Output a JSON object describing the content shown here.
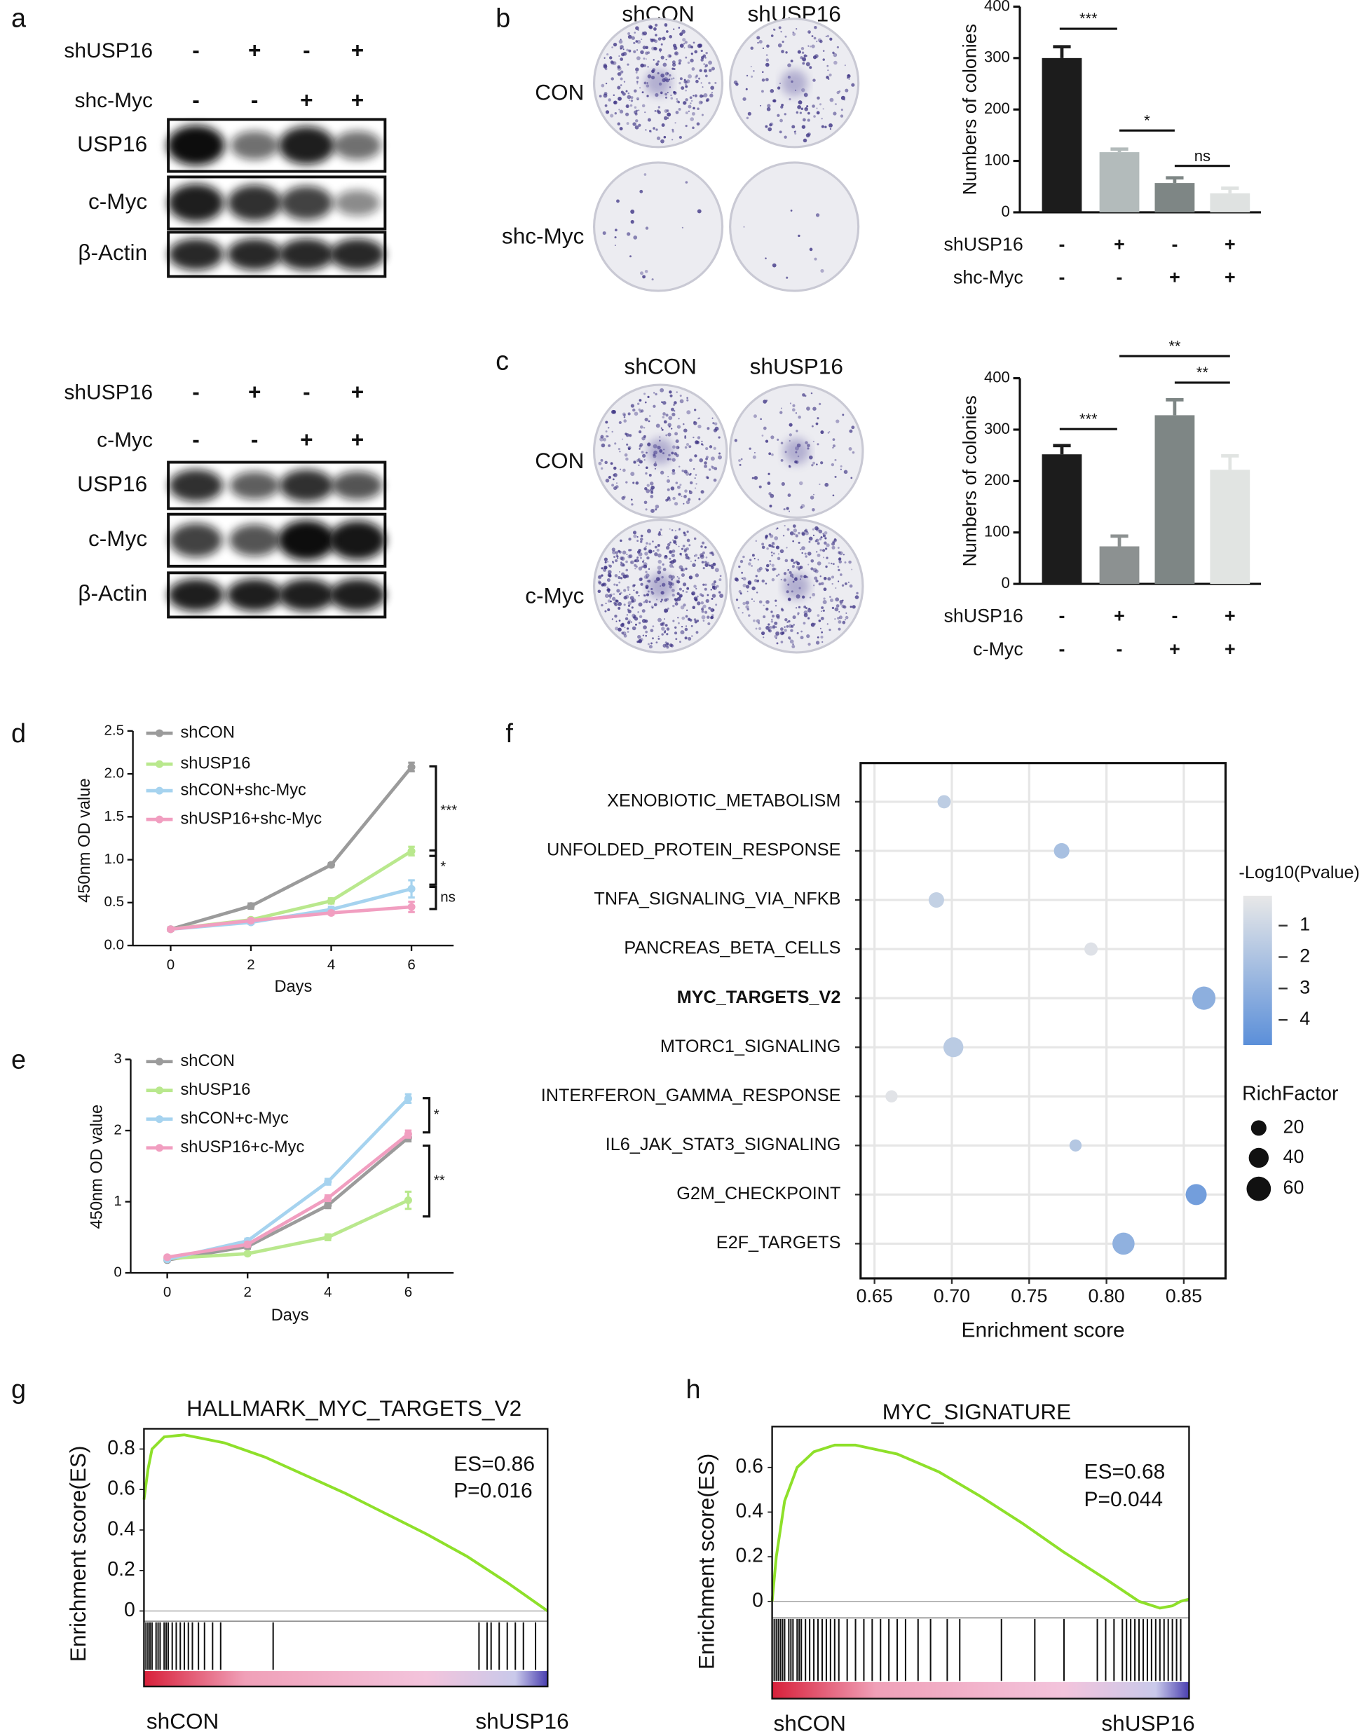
{
  "panel_labels": [
    "a",
    "b",
    "c",
    "d",
    "e",
    "f",
    "g",
    "h"
  ],
  "blots": [
    {
      "conditions": [
        {
          "name": "shUSP16",
          "signs": [
            "-",
            "+",
            "-",
            "+"
          ]
        },
        {
          "name": "shc-Myc",
          "signs": [
            "-",
            "-",
            "+",
            "+"
          ]
        }
      ],
      "bands": [
        "USP16",
        "c-Myc",
        "β-Actin"
      ]
    },
    {
      "conditions": [
        {
          "name": "shUSP16",
          "signs": [
            "-",
            "+",
            "-",
            "+"
          ]
        },
        {
          "name": "c-Myc",
          "signs": [
            "-",
            "-",
            "+",
            "+"
          ]
        }
      ],
      "bands": [
        "USP16",
        "c-Myc",
        "β-Actin"
      ]
    }
  ],
  "colonies": [
    {
      "columns": [
        "shCON",
        "shUSP16"
      ],
      "rows": [
        "CON",
        "shc-Myc"
      ]
    },
    {
      "columns": [
        "shCON",
        "shUSP16"
      ],
      "rows": [
        "CON",
        "c-Myc"
      ]
    }
  ],
  "chart_data": [
    {
      "type": "bar",
      "ylabel": "Numbers of colonies",
      "categories": [
        null,
        null,
        null,
        null
      ],
      "values": [
        300,
        117,
        57,
        37
      ],
      "errors": [
        22,
        6,
        10,
        10
      ],
      "colors": [
        "#1c1c1c",
        "#b3bbbb",
        "#7e8685",
        "#dfe2e1"
      ],
      "ylim": [
        0,
        400
      ],
      "yticks": [
        0,
        100,
        200,
        300,
        400
      ],
      "conditions": [
        {
          "name": "shUSP16",
          "signs": [
            "-",
            "+",
            "-",
            "+"
          ]
        },
        {
          "name": "shc-Myc",
          "signs": [
            "-",
            "-",
            "+",
            "+"
          ]
        }
      ],
      "annotations": [
        "***",
        "*",
        "ns"
      ]
    },
    {
      "type": "bar",
      "ylabel": "Numbers of colonies",
      "categories": [
        null,
        null,
        null,
        null
      ],
      "values": [
        252,
        73,
        328,
        222
      ],
      "errors": [
        17,
        20,
        30,
        27
      ],
      "colors": [
        "#1c1c1c",
        "#8c9191",
        "#7e8685",
        "#e1e4e2"
      ],
      "ylim": [
        0,
        400
      ],
      "yticks": [
        0,
        100,
        200,
        300,
        400
      ],
      "conditions": [
        {
          "name": "shUSP16",
          "signs": [
            "-",
            "+",
            "-",
            "+"
          ]
        },
        {
          "name": "c-Myc",
          "signs": [
            "-",
            "-",
            "+",
            "+"
          ]
        }
      ],
      "annotations": [
        "***",
        "**",
        "**"
      ]
    },
    {
      "type": "line",
      "xlabel": "Days",
      "ylabel": "450nm OD value",
      "x": [
        0,
        2,
        4,
        6
      ],
      "xlim": [
        -0.94,
        7.05
      ],
      "xticks": [
        0,
        2,
        4,
        6
      ],
      "ylim": [
        0,
        2.5
      ],
      "yticks": [
        {
          "value": 0,
          "label": "0.0"
        },
        0.5,
        {
          "value": 1,
          "label": "1.0"
        },
        1.5,
        {
          "value": 2,
          "label": "2.0"
        },
        2.5
      ],
      "series": [
        {
          "name": "shCON",
          "color": "#9b9b9b",
          "values": [
            0.19,
            0.46,
            0.94,
            2.08
          ],
          "errors": [
            0.02,
            0.03,
            0.02,
            0.05
          ]
        },
        {
          "name": "shUSP16",
          "color": "#b9e88d",
          "values": [
            0.19,
            0.3,
            0.52,
            1.1
          ],
          "errors": [
            0.02,
            0.02,
            0.03,
            0.05
          ]
        },
        {
          "name": "shCON+shc-Myc",
          "color": "#a6d3ef",
          "values": [
            0.19,
            0.27,
            0.42,
            0.66
          ],
          "errors": [
            0.02,
            0.02,
            0.03,
            0.1
          ]
        },
        {
          "name": "shUSP16+shc-Myc",
          "color": "#f19ec0",
          "values": [
            0.19,
            0.29,
            0.38,
            0.45
          ],
          "errors": [
            0.02,
            0.02,
            0.02,
            0.06
          ]
        }
      ],
      "annotations": [
        "***",
        "*",
        "ns"
      ]
    },
    {
      "type": "line",
      "xlabel": "Days",
      "ylabel": "450nm OD value",
      "x": [
        0,
        2,
        4,
        6
      ],
      "xlim": [
        -0.91,
        7.13
      ],
      "xticks": [
        0,
        2,
        4,
        6
      ],
      "ylim": [
        0,
        3
      ],
      "yticks": [
        0,
        1,
        2,
        3
      ],
      "series": [
        {
          "name": "shCON",
          "color": "#9b9b9b",
          "values": [
            0.18,
            0.37,
            0.95,
            1.9
          ],
          "errors": [
            0.02,
            0.03,
            0.04,
            0.05
          ]
        },
        {
          "name": "shUSP16",
          "color": "#b9e88d",
          "values": [
            0.2,
            0.27,
            0.5,
            1.02
          ],
          "errors": [
            0.02,
            0.02,
            0.04,
            0.12
          ]
        },
        {
          "name": "shCON+c-Myc",
          "color": "#a6d3ef",
          "values": [
            0.19,
            0.45,
            1.28,
            2.45
          ],
          "errors": [
            0.02,
            0.03,
            0.04,
            0.06
          ]
        },
        {
          "name": "shUSP16+c-Myc",
          "color": "#f19ec0",
          "values": [
            0.22,
            0.4,
            1.05,
            1.95
          ],
          "errors": [
            0.02,
            0.03,
            0.04,
            0.05
          ]
        }
      ],
      "annotations": [
        "*",
        "**"
      ]
    },
    {
      "type": "dot",
      "xlabel": "Enrichment score",
      "categories": [
        "XENOBIOTIC_METABOLISM",
        "UNFOLDED_PROTEIN_RESPONSE",
        "TNFA_SIGNALING_VIA_NFKB",
        "PANCREAS_BETA_CELLS",
        "MYC_TARGETS_V2",
        "MTORC1_SIGNALING",
        "INTERFERON_GAMMA_RESPONSE",
        "IL6_JAK_STAT3_SIGNALING",
        "G2M_CHECKPOINT",
        "E2F_TARGETS"
      ],
      "values": [
        0.695,
        0.771,
        0.69,
        0.79,
        0.863,
        0.701,
        0.661,
        0.78,
        0.858,
        0.811
      ],
      "rich_factor": [
        10,
        20,
        20,
        10,
        55,
        40,
        5,
        5,
        45,
        50
      ],
      "neg_log10_p": [
        1.5,
        2.2,
        1.3,
        0.4,
        3.1,
        1.6,
        0.3,
        1.8,
        4.0,
        3.0
      ],
      "xlim": [
        0.641,
        0.877
      ],
      "xticks": [
        0.65,
        {
          "value": 0.7,
          "label": "0.70"
        },
        0.75,
        {
          "value": 0.8,
          "label": "0.80"
        },
        0.85
      ],
      "grid": true,
      "colorbar_title": "-Log10(Pvalue)",
      "clim": [
        0.05,
        4.8
      ],
      "cticks": [
        1,
        2,
        3,
        4
      ],
      "color_low": "#e8e8e8",
      "color_high": "#5b8fd9",
      "size_title": "RichFactor",
      "size_ticks": [
        20,
        40,
        60
      ]
    },
    {
      "type": "gsea",
      "title": "HALLMARK_MYC_TARGETS_V2",
      "ylabel": "Enrichment score(ES)",
      "es_label": "ES=0.86",
      "p_label": "P=0.016",
      "start_label": "shCON",
      "end_label": "shUSP16",
      "xlim": [
        0,
        1
      ],
      "ylim": [
        -0.045,
        0.9
      ],
      "yticks": [
        0,
        0.2,
        0.4,
        0.6,
        0.8
      ],
      "color": "#8ee02a",
      "x": [
        0,
        0.01,
        0.02,
        0.05,
        0.1,
        0.15,
        0.2,
        0.3,
        0.4,
        0.5,
        0.6,
        0.7,
        0.8,
        0.9,
        0.95,
        1
      ],
      "values": [
        0.55,
        0.7,
        0.8,
        0.86,
        0.87,
        0.85,
        0.83,
        0.76,
        0.67,
        0.58,
        0.48,
        0.38,
        0.27,
        0.14,
        0.07,
        0.0
      ],
      "hits": [
        0.005,
        0.01,
        0.015,
        0.02,
        0.03,
        0.035,
        0.04,
        0.05,
        0.055,
        0.06,
        0.07,
        0.08,
        0.09,
        0.1,
        0.11,
        0.12,
        0.135,
        0.15,
        0.17,
        0.19,
        0.32,
        0.83,
        0.85,
        0.86,
        0.88,
        0.9,
        0.92,
        0.94,
        0.97
      ]
    },
    {
      "type": "gsea",
      "title": "MYC_SIGNATURE",
      "ylabel": "Enrichment score(ES)",
      "es_label": "ES=0.68",
      "p_label": "P=0.044",
      "start_label": "shCON",
      "end_label": "shUSP16",
      "xlim": [
        0,
        1
      ],
      "ylim": [
        -0.069,
        0.783
      ],
      "yticks": [
        0,
        0.2,
        0.4,
        0.6
      ],
      "color": "#8ee02a",
      "x": [
        0,
        0.01,
        0.03,
        0.06,
        0.1,
        0.15,
        0.2,
        0.3,
        0.4,
        0.5,
        0.6,
        0.7,
        0.8,
        0.88,
        0.93,
        0.96,
        0.98,
        1
      ],
      "values": [
        0,
        0.2,
        0.45,
        0.6,
        0.67,
        0.7,
        0.7,
        0.66,
        0.58,
        0.47,
        0.35,
        0.22,
        0.1,
        0.0,
        -0.03,
        -0.02,
        0.0,
        0.01
      ],
      "hits": [
        0.005,
        0.01,
        0.015,
        0.02,
        0.025,
        0.03,
        0.04,
        0.045,
        0.05,
        0.06,
        0.065,
        0.07,
        0.08,
        0.09,
        0.1,
        0.11,
        0.12,
        0.13,
        0.14,
        0.15,
        0.16,
        0.18,
        0.2,
        0.22,
        0.24,
        0.26,
        0.28,
        0.3,
        0.32,
        0.35,
        0.38,
        0.42,
        0.45,
        0.55,
        0.63,
        0.7,
        0.78,
        0.8,
        0.82,
        0.84,
        0.85,
        0.86,
        0.87,
        0.88,
        0.89,
        0.9,
        0.91,
        0.92,
        0.93,
        0.94,
        0.95,
        0.96,
        0.97,
        0.98
      ]
    }
  ]
}
